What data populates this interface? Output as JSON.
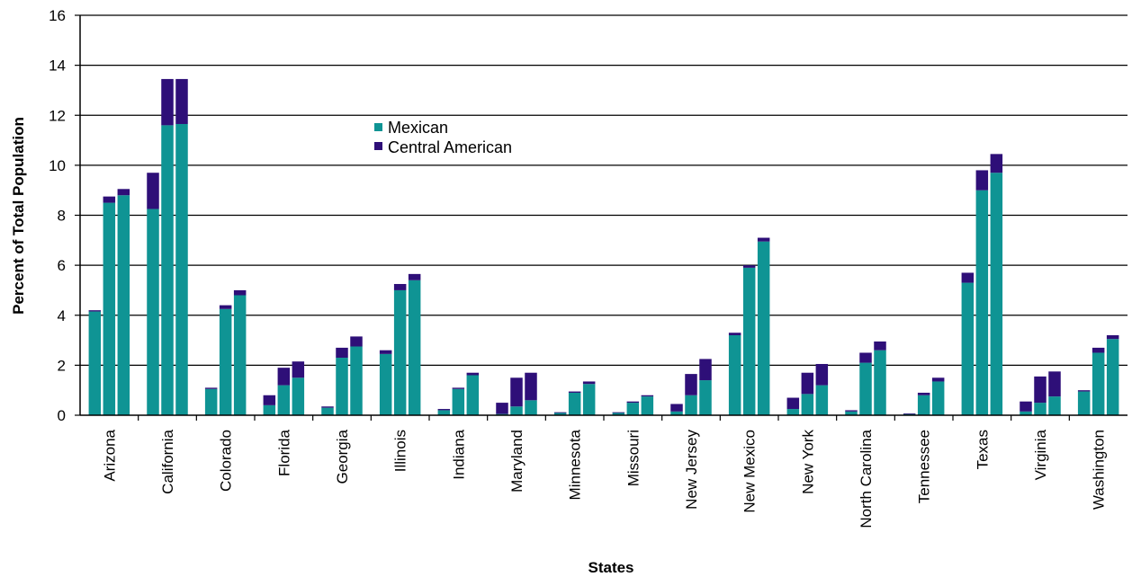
{
  "chart_data": {
    "type": "bar",
    "stacked": true,
    "xlabel": "States",
    "ylabel": "Percent of Total Population",
    "ylim": [
      0,
      16
    ],
    "yticks": [
      0,
      2,
      4,
      6,
      8,
      10,
      12,
      14,
      16
    ],
    "yticklabels": [
      "0",
      "2",
      "4",
      "6",
      "8",
      "10",
      "12",
      "14",
      "16"
    ],
    "grid": true,
    "legend_position": "upper-center",
    "bars_per_category": 3,
    "categories": [
      "Arizona",
      "California",
      "Colorado",
      "Florida",
      "Georgia",
      "Illinois",
      "Indiana",
      "Maryland",
      "Minnesota",
      "Missouri",
      "New Jersey",
      "New Mexico",
      "New York",
      "North Carolina",
      "Tennessee",
      "Texas",
      "Virginia",
      "Washington"
    ],
    "series": [
      {
        "name": "Mexican",
        "color": "#0f9494",
        "values": [
          [
            4.15,
            8.5,
            8.8
          ],
          [
            8.25,
            11.6,
            11.65
          ],
          [
            1.05,
            4.25,
            4.8
          ],
          [
            0.4,
            1.2,
            1.5
          ],
          [
            0.3,
            2.3,
            2.75
          ],
          [
            2.45,
            5.0,
            5.4
          ],
          [
            0.2,
            1.05,
            1.6
          ],
          [
            0.05,
            0.35,
            0.6
          ],
          [
            0.1,
            0.9,
            1.25
          ],
          [
            0.1,
            0.5,
            0.75
          ],
          [
            0.15,
            0.8,
            1.4
          ],
          [
            3.2,
            5.9,
            6.95
          ],
          [
            0.25,
            0.85,
            1.2
          ],
          [
            0.15,
            2.1,
            2.6
          ],
          [
            0.05,
            0.8,
            1.35
          ],
          [
            5.3,
            9.0,
            9.7
          ],
          [
            0.15,
            0.5,
            0.75
          ],
          [
            0.95,
            2.5,
            3.05
          ]
        ]
      },
      {
        "name": "Central American",
        "color": "#2e0f78",
        "values": [
          [
            0.05,
            0.25,
            0.25
          ],
          [
            1.45,
            1.85,
            1.8
          ],
          [
            0.05,
            0.15,
            0.2
          ],
          [
            0.4,
            0.7,
            0.65
          ],
          [
            0.05,
            0.4,
            0.4
          ],
          [
            0.15,
            0.25,
            0.25
          ],
          [
            0.05,
            0.05,
            0.1
          ],
          [
            0.45,
            1.15,
            1.1
          ],
          [
            0.02,
            0.05,
            0.1
          ],
          [
            0.02,
            0.05,
            0.05
          ],
          [
            0.3,
            0.85,
            0.85
          ],
          [
            0.1,
            0.1,
            0.15
          ],
          [
            0.45,
            0.85,
            0.85
          ],
          [
            0.05,
            0.4,
            0.35
          ],
          [
            0.02,
            0.1,
            0.15
          ],
          [
            0.4,
            0.8,
            0.75
          ],
          [
            0.4,
            1.05,
            1.0
          ],
          [
            0.05,
            0.2,
            0.15
          ]
        ]
      }
    ]
  }
}
